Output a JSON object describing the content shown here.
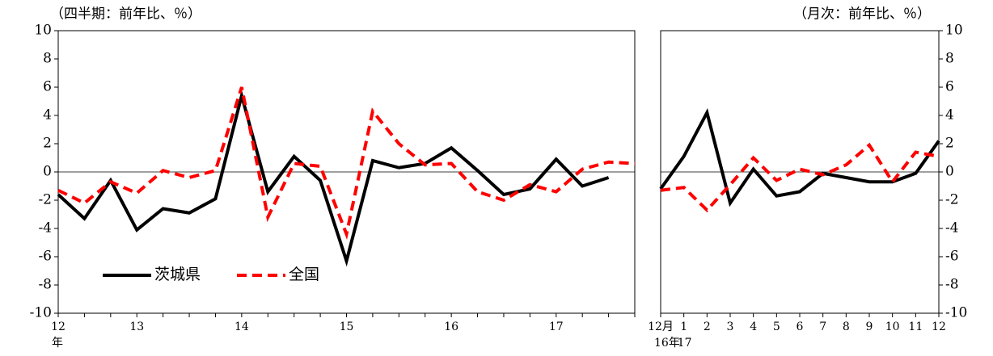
{
  "chart_data": [
    {
      "type": "line",
      "subtitle": "（四半期：前年比、％）",
      "categories": [
        "12",
        null,
        null,
        "13",
        null,
        null,
        null,
        "14",
        null,
        null,
        null,
        "15",
        null,
        null,
        null,
        "16",
        null,
        null,
        null,
        "17",
        null,
        null,
        null
      ],
      "category_sublabels": [
        "年",
        null,
        null,
        null,
        null,
        null,
        null,
        null,
        null,
        null,
        null,
        null,
        null,
        null,
        null,
        null,
        null,
        null,
        null,
        null,
        null,
        null,
        null
      ],
      "series": [
        {
          "name": "茨城県",
          "color": "#000000",
          "dash": "solid",
          "values": [
            -1.6,
            -3.3,
            -0.6,
            -4.1,
            -2.6,
            -2.9,
            -1.9,
            5.4,
            -1.4,
            1.1,
            -0.6,
            -6.3,
            0.8,
            0.3,
            0.6,
            1.7,
            0.1,
            -1.6,
            -1.2,
            0.9,
            -1.0,
            -0.4,
            null
          ]
        },
        {
          "name": "全国",
          "color": "#ff0000",
          "dash": "dashed",
          "values": [
            -1.3,
            -2.2,
            -0.7,
            -1.5,
            0.1,
            -0.4,
            0.1,
            6.0,
            -3.2,
            0.6,
            0.4,
            -4.4,
            4.3,
            2.0,
            0.5,
            0.6,
            -1.4,
            -2.0,
            -0.9,
            -1.4,
            0.2,
            0.7,
            0.6
          ]
        }
      ],
      "ylim": [
        -10,
        10
      ],
      "yticks": [
        -10,
        -8,
        -6,
        -4,
        -2,
        0,
        2,
        4,
        6,
        8,
        10
      ],
      "yaxis_side": "left",
      "legend": "lower left"
    },
    {
      "type": "line",
      "subtitle": "（月次：前年比、％）",
      "categories": [
        "12月",
        "1",
        "2",
        "3",
        "4",
        "5",
        "6",
        "7",
        "8",
        "9",
        "10",
        "11",
        "12"
      ],
      "category_sublabels": [
        "16年",
        "17",
        null,
        null,
        null,
        null,
        null,
        null,
        null,
        null,
        null,
        null,
        null
      ],
      "series": [
        {
          "name": "茨城県",
          "color": "#000000",
          "dash": "solid",
          "values": [
            -1.2,
            1.1,
            4.2,
            -2.2,
            0.2,
            -1.7,
            -1.4,
            -0.1,
            -0.4,
            -0.7,
            -0.7,
            -0.1,
            2.2
          ]
        },
        {
          "name": "全国",
          "color": "#ff0000",
          "dash": "dashed",
          "values": [
            -1.3,
            -1.1,
            -2.7,
            -0.9,
            1.0,
            -0.6,
            0.2,
            -0.2,
            0.5,
            1.9,
            -0.7,
            1.4,
            1.1
          ]
        }
      ],
      "ylim": [
        -10,
        10
      ],
      "yticks": [
        -10,
        -8,
        -6,
        -4,
        -2,
        0,
        2,
        4,
        6,
        8,
        10
      ],
      "yaxis_side": "right"
    }
  ]
}
